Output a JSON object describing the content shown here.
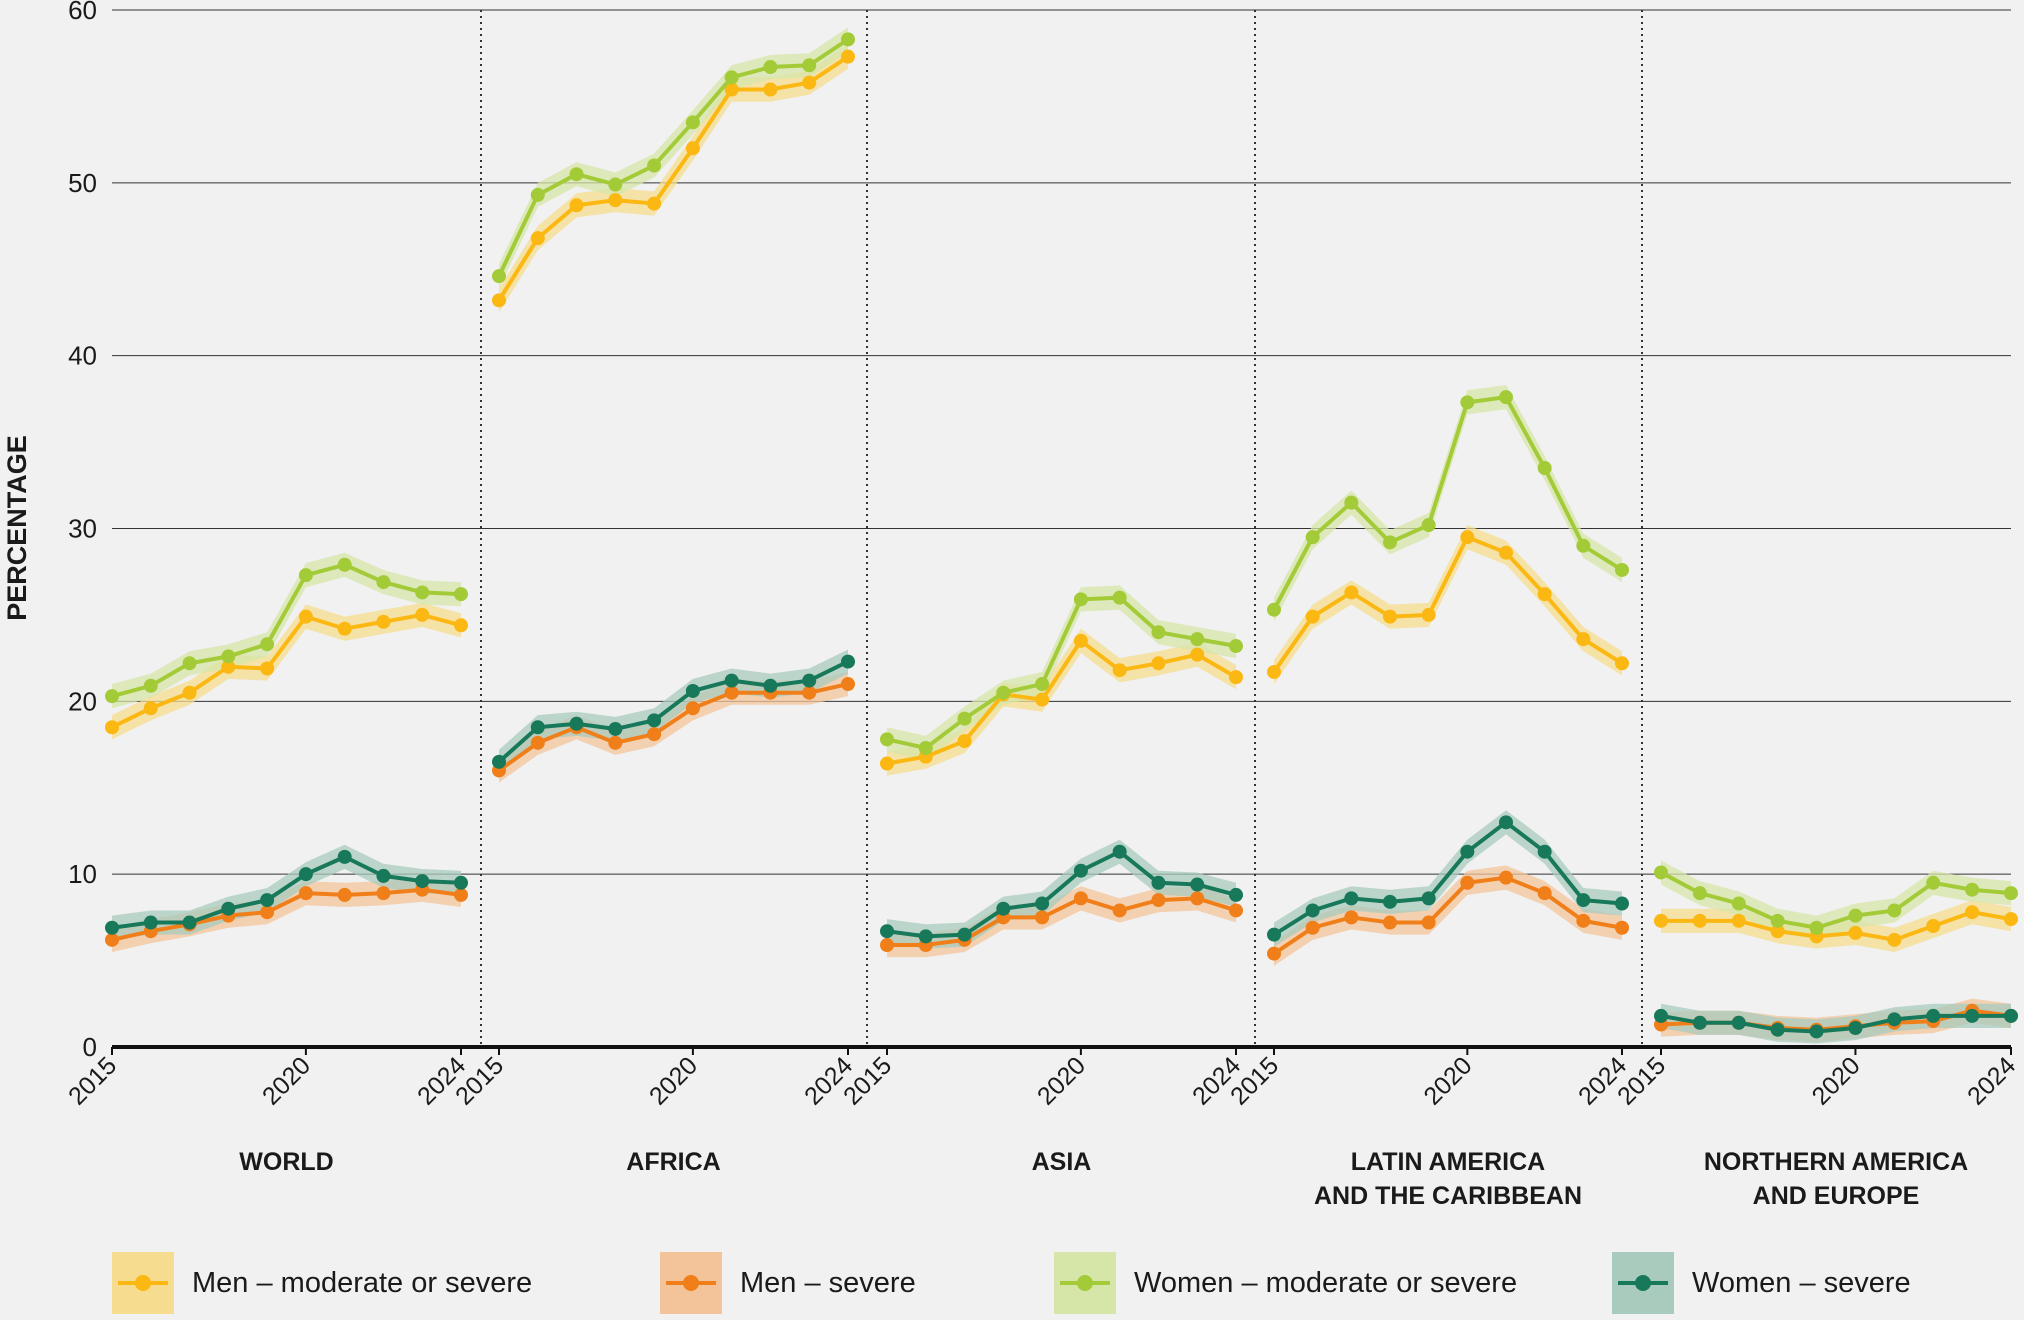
{
  "chart_data": {
    "type": "line",
    "ylabel": "PERCENTAGE",
    "ylim": [
      0,
      60
    ],
    "yticks": [
      0,
      10,
      20,
      30,
      40,
      50,
      60
    ],
    "grid": true,
    "legend_position": "bottom",
    "x": [
      2015,
      2016,
      2017,
      2018,
      2019,
      2020,
      2021,
      2022,
      2023,
      2024
    ],
    "xtick_labels": [
      "2015",
      "2020",
      "2024"
    ],
    "series_meta": [
      {
        "key": "men_mod",
        "name": "Men – moderate or severe",
        "color": "#fbb813",
        "band": "#f5dc8e"
      },
      {
        "key": "men_sev",
        "name": "Men – severe",
        "color": "#f07f1a",
        "band": "#f3c49a"
      },
      {
        "key": "women_mod",
        "name": "Women – moderate or severe",
        "color": "#a3cb38",
        "band": "#d6e6a8"
      },
      {
        "key": "women_sev",
        "name": "Women – severe",
        "color": "#18785a",
        "band": "#a9cbbd"
      }
    ],
    "panels": [
      {
        "title": [
          "WORLD"
        ],
        "women_mod": [
          20.3,
          20.9,
          22.2,
          22.6,
          23.3,
          27.3,
          27.9,
          26.9,
          26.3,
          26.2
        ],
        "men_mod": [
          18.5,
          19.6,
          20.5,
          22.0,
          21.9,
          24.9,
          24.2,
          24.6,
          25.0,
          24.4
        ],
        "women_sev": [
          6.9,
          7.2,
          7.2,
          8.0,
          8.5,
          10.0,
          11.0,
          9.9,
          9.6,
          9.5
        ],
        "men_sev": [
          6.2,
          6.7,
          7.1,
          7.6,
          7.8,
          8.9,
          8.8,
          8.9,
          9.1,
          8.8
        ]
      },
      {
        "title": [
          "AFRICA"
        ],
        "women_mod": [
          44.6,
          49.3,
          50.5,
          49.9,
          51.0,
          53.5,
          56.1,
          56.7,
          56.8,
          58.3
        ],
        "men_mod": [
          43.2,
          46.8,
          48.7,
          49.0,
          48.8,
          52.0,
          55.4,
          55.4,
          55.8,
          57.3
        ],
        "women_sev": [
          16.5,
          18.5,
          18.7,
          18.4,
          18.9,
          20.6,
          21.2,
          20.9,
          21.2,
          22.3
        ],
        "men_sev": [
          16.0,
          17.6,
          18.5,
          17.6,
          18.1,
          19.6,
          20.5,
          20.5,
          20.5,
          21.0
        ]
      },
      {
        "title": [
          "ASIA"
        ],
        "women_mod": [
          17.8,
          17.3,
          19.0,
          20.5,
          21.0,
          25.9,
          26.0,
          24.0,
          23.6,
          23.2
        ],
        "men_mod": [
          16.4,
          16.8,
          17.7,
          20.4,
          20.1,
          23.5,
          21.8,
          22.2,
          22.7,
          21.4
        ],
        "women_sev": [
          6.7,
          6.4,
          6.5,
          8.0,
          8.3,
          10.2,
          11.3,
          9.5,
          9.4,
          8.8
        ],
        "men_sev": [
          5.9,
          5.9,
          6.2,
          7.5,
          7.5,
          8.6,
          7.9,
          8.5,
          8.6,
          7.9
        ]
      },
      {
        "title": [
          "LATIN AMERICA",
          "AND THE CARIBBEAN"
        ],
        "women_mod": [
          25.3,
          29.5,
          31.5,
          29.2,
          30.2,
          37.3,
          37.6,
          33.5,
          29.0,
          27.6
        ],
        "men_mod": [
          21.7,
          24.9,
          26.3,
          24.9,
          25.0,
          29.5,
          28.6,
          26.2,
          23.6,
          22.2
        ],
        "women_sev": [
          6.5,
          7.9,
          8.6,
          8.4,
          8.6,
          11.3,
          13.0,
          11.3,
          8.5,
          8.3
        ],
        "men_sev": [
          5.4,
          6.9,
          7.5,
          7.2,
          7.2,
          9.5,
          9.8,
          8.9,
          7.3,
          6.9
        ]
      },
      {
        "title": [
          "NORTHERN AMERICA",
          "AND EUROPE"
        ],
        "women_mod": [
          10.1,
          8.9,
          8.3,
          7.3,
          6.9,
          7.6,
          7.9,
          9.5,
          9.1,
          8.9
        ],
        "men_mod": [
          7.3,
          7.3,
          7.3,
          6.7,
          6.4,
          6.6,
          6.2,
          7.0,
          7.8,
          7.4
        ],
        "women_sev": [
          1.8,
          1.4,
          1.4,
          1.0,
          0.9,
          1.1,
          1.6,
          1.8,
          1.8,
          1.8
        ],
        "men_sev": [
          1.3,
          1.4,
          1.4,
          1.1,
          1.0,
          1.2,
          1.4,
          1.5,
          2.1,
          1.8
        ]
      }
    ]
  }
}
